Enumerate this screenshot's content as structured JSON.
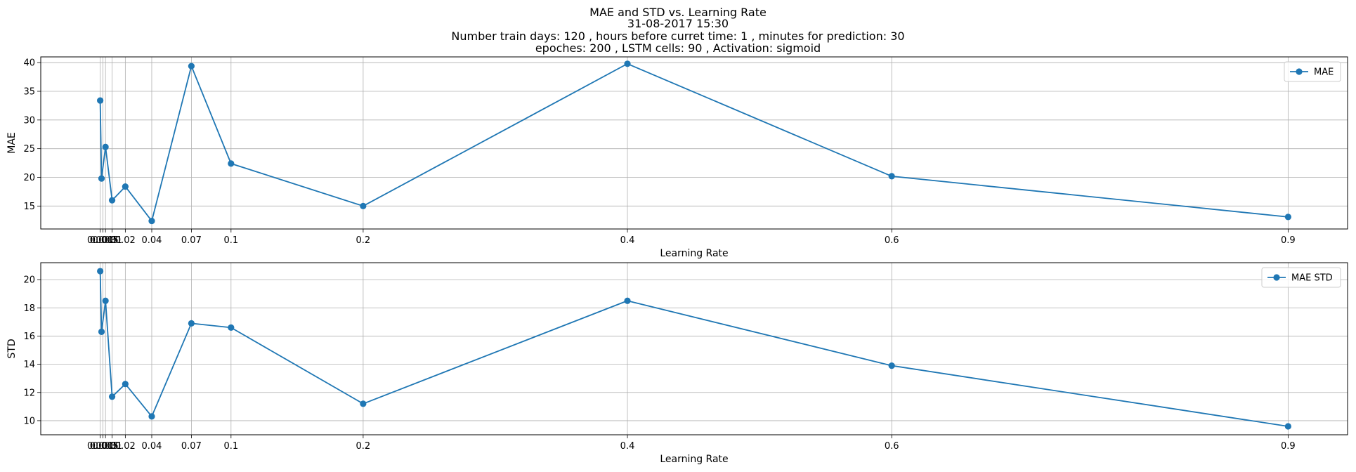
{
  "figure": {
    "title_lines": [
      "MAE and STD vs. Learning Rate",
      "31-08-2017 15:30",
      "Number train days: 120 , hours before curret time: 1 , minutes for prediction: 30",
      "epoches: 200 , LSTM cells: 90 , Activation: sigmoid"
    ]
  },
  "chart_data": [
    {
      "type": "line",
      "xlabel": "Learning Rate",
      "ylabel": "MAE",
      "grid": true,
      "legend_position": "top-right",
      "xlim": [
        -0.044,
        0.945
      ],
      "ylim": [
        11.0,
        41.0
      ],
      "xticks": [
        0.001,
        0.003,
        0.005,
        0.01,
        0.02,
        0.04,
        0.07,
        0.1,
        0.2,
        0.4,
        0.6,
        0.9
      ],
      "xtick_labels": [
        "0.001",
        "0.003",
        "0.005",
        "0.01",
        "0.02",
        "0.04",
        "0.07",
        "0.1",
        "0.2",
        "0.4",
        "0.6",
        "0.9"
      ],
      "yticks": [
        15,
        20,
        25,
        30,
        35,
        40
      ],
      "ytick_labels": [
        "15",
        "20",
        "25",
        "30",
        "35",
        "40"
      ],
      "color": "#1f77b4",
      "series": [
        {
          "name": "MAE",
          "x": [
            0.001,
            0.002,
            0.005,
            0.01,
            0.02,
            0.04,
            0.07,
            0.1,
            0.2,
            0.4,
            0.6,
            0.9
          ],
          "y": [
            33.4,
            19.8,
            25.3,
            16.0,
            18.4,
            12.4,
            39.4,
            22.4,
            15.0,
            39.8,
            20.2,
            13.1
          ]
        }
      ]
    },
    {
      "type": "line",
      "xlabel": "Learning Rate",
      "ylabel": "STD",
      "grid": true,
      "legend_position": "top-right",
      "xlim": [
        -0.044,
        0.945
      ],
      "ylim": [
        9.0,
        21.2
      ],
      "xticks": [
        0.001,
        0.003,
        0.005,
        0.01,
        0.02,
        0.04,
        0.07,
        0.1,
        0.2,
        0.4,
        0.6,
        0.9
      ],
      "xtick_labels": [
        "0.001",
        "0.003",
        "0.005",
        "0.01",
        "0.02",
        "0.04",
        "0.07",
        "0.1",
        "0.2",
        "0.4",
        "0.6",
        "0.9"
      ],
      "yticks": [
        10,
        12,
        14,
        16,
        18,
        20
      ],
      "ytick_labels": [
        "10",
        "12",
        "14",
        "16",
        "18",
        "20"
      ],
      "color": "#1f77b4",
      "series": [
        {
          "name": "MAE STD",
          "x": [
            0.001,
            0.002,
            0.005,
            0.01,
            0.02,
            0.04,
            0.07,
            0.1,
            0.2,
            0.4,
            0.6,
            0.9
          ],
          "y": [
            20.6,
            16.3,
            18.5,
            11.7,
            12.6,
            10.3,
            16.9,
            16.6,
            11.2,
            18.5,
            13.9,
            9.6
          ]
        }
      ]
    }
  ]
}
